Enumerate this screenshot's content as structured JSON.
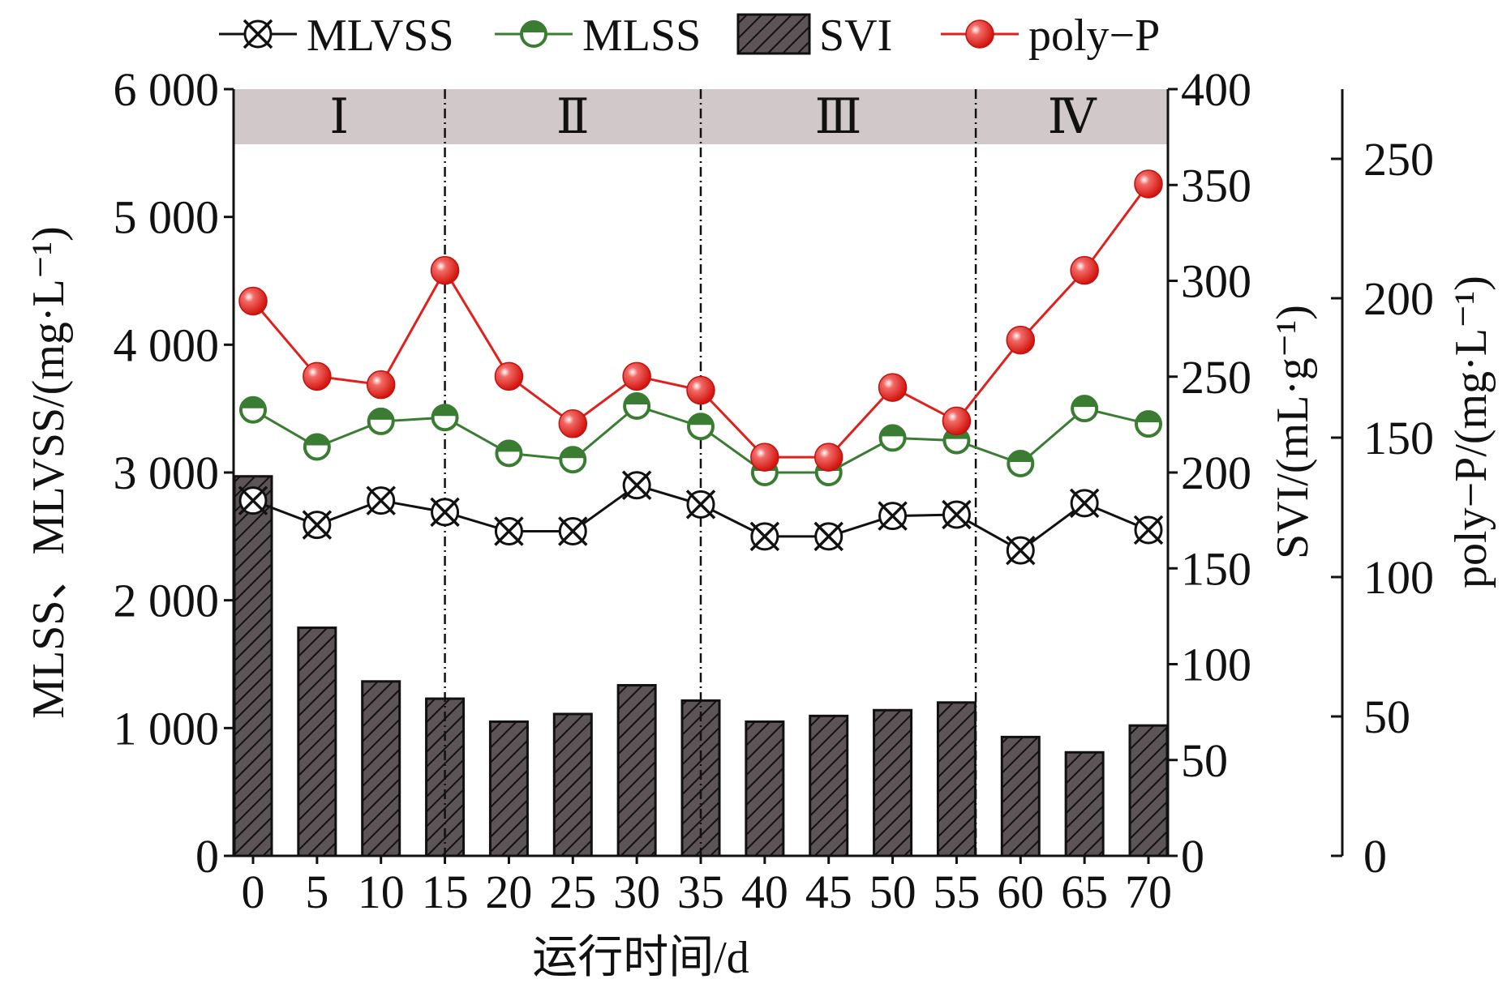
{
  "chart_data": {
    "type": "bar",
    "x": [
      0,
      5,
      10,
      15,
      20,
      25,
      30,
      35,
      40,
      45,
      50,
      55,
      60,
      65,
      70
    ],
    "xlabel": "运行时间/d",
    "xlim": [
      0,
      70
    ],
    "left_axis": {
      "label": "MLSS、MLVSS/(mg·L⁻¹)",
      "ylim": [
        0,
        6000
      ],
      "ticks": [
        {
          "value": 0,
          "label": "0"
        },
        {
          "value": 1000,
          "label": "1 000"
        },
        {
          "value": 2000,
          "label": "2 000"
        },
        {
          "value": 3000,
          "label": "3 000"
        },
        {
          "value": 4000,
          "label": "4 000"
        },
        {
          "value": 5000,
          "label": "5 000"
        },
        {
          "value": 6000,
          "label": "6 000"
        }
      ]
    },
    "right_axis_1": {
      "label": "SVI/(mL·g⁻¹)",
      "ylim": [
        0,
        400
      ],
      "ticks": [
        {
          "value": 0,
          "label": "0"
        },
        {
          "value": 50,
          "label": "50"
        },
        {
          "value": 100,
          "label": "100"
        },
        {
          "value": 150,
          "label": "150"
        },
        {
          "value": 200,
          "label": "200"
        },
        {
          "value": 250,
          "label": "250"
        },
        {
          "value": 300,
          "label": "300"
        },
        {
          "value": 350,
          "label": "350"
        },
        {
          "value": 400,
          "label": "400"
        }
      ]
    },
    "right_axis_2": {
      "label": "poly−P/(mg·L⁻¹)",
      "ylim": [
        0,
        275
      ],
      "ticks": [
        {
          "value": 0,
          "label": "0"
        },
        {
          "value": 50,
          "label": "50"
        },
        {
          "value": 100,
          "label": "100"
        },
        {
          "value": 150,
          "label": "150"
        },
        {
          "value": 200,
          "label": "200"
        },
        {
          "value": 250,
          "label": "250"
        }
      ]
    },
    "phases": [
      {
        "label": "Ⅰ",
        "start": -3,
        "end": 15
      },
      {
        "label": "Ⅱ",
        "start": 15,
        "end": 35
      },
      {
        "label": "Ⅲ",
        "start": 35,
        "end": 56.5
      },
      {
        "label": "Ⅳ",
        "start": 56.5,
        "end": 73
      }
    ],
    "phase_dividers": [
      15,
      35,
      56.5
    ],
    "series": [
      {
        "name": "SVI",
        "kind": "bar",
        "axis": "right_axis_1",
        "color": "#5c5456",
        "values": [
          198,
          119,
          91,
          82,
          70,
          74,
          89,
          81,
          70,
          73,
          76,
          80,
          62,
          54,
          68
        ]
      },
      {
        "name": "MLVSS",
        "kind": "line",
        "axis": "left_axis",
        "color": "#111111",
        "values": [
          2780,
          2590,
          2780,
          2690,
          2540,
          2540,
          2900,
          2750,
          2500,
          2500,
          2660,
          2670,
          2390,
          2760,
          2550
        ]
      },
      {
        "name": "MLSS",
        "kind": "line",
        "axis": "left_axis",
        "color": "#3a7d32",
        "values": [
          3490,
          3200,
          3400,
          3430,
          3150,
          3100,
          3520,
          3360,
          3000,
          3000,
          3270,
          3250,
          3070,
          3500,
          3380
        ]
      },
      {
        "name": "poly−P",
        "kind": "line",
        "axis": "right_axis_2",
        "color": "#e0201c",
        "values": [
          199,
          172,
          169,
          210,
          172,
          155,
          172,
          167,
          143,
          143,
          168,
          156,
          185,
          210,
          241
        ]
      }
    ],
    "legend": [
      "MLVSS",
      "MLSS",
      "SVI",
      "poly−P"
    ],
    "legend_position": "top",
    "grid": false
  }
}
